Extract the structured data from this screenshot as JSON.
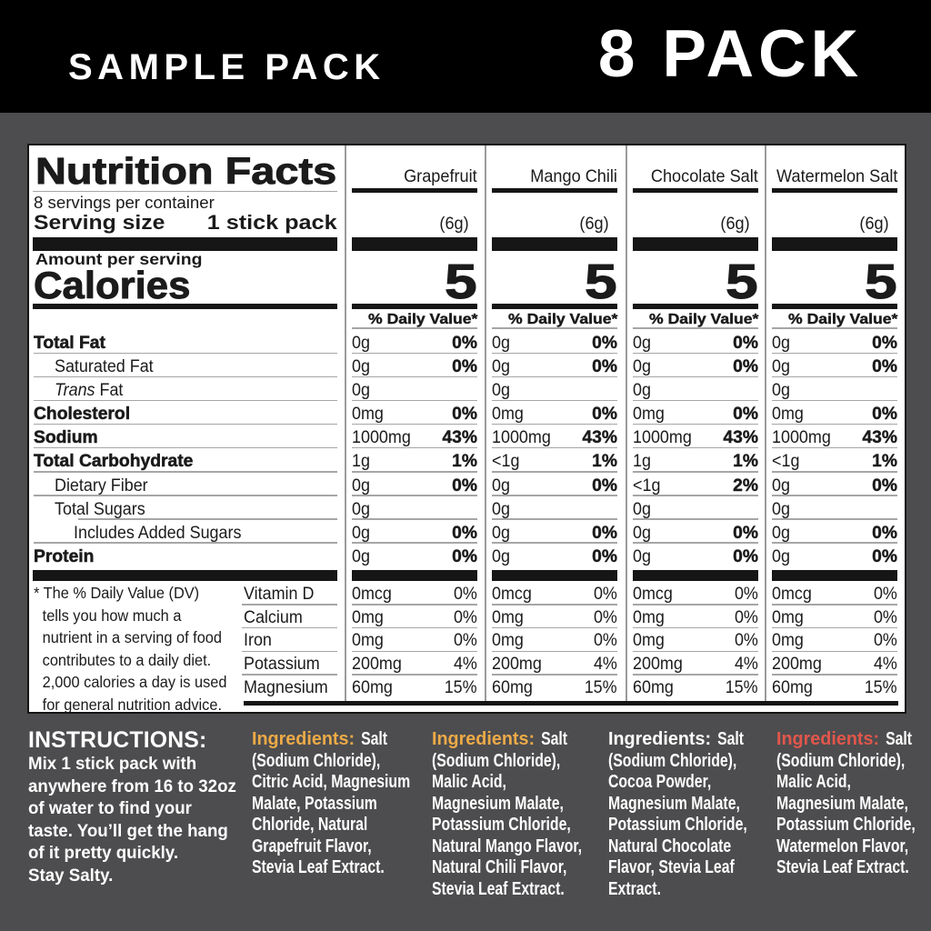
{
  "header": {
    "left_title": "SAMPLE PACK",
    "right_title": "8 PACK"
  },
  "panel": {
    "title": "Nutrition Facts",
    "servings_per_container": "8 servings per container",
    "serving_size_label": "Serving size",
    "serving_size_value": "1 stick pack",
    "amount_per_serving_label": "Amount per serving",
    "calories_label": "Calories",
    "daily_value_header": "% Daily Value*",
    "nutrient_labels": [
      {
        "text": "Total Fat",
        "bold": true,
        "indent": 0
      },
      {
        "text": "Saturated Fat",
        "bold": false,
        "indent": 1
      },
      {
        "text": "Trans Fat",
        "bold": false,
        "indent": 1,
        "italic_prefix": "Trans",
        "rest": " Fat"
      },
      {
        "text": "Cholesterol",
        "bold": true,
        "indent": 0
      },
      {
        "text": "Sodium",
        "bold": true,
        "indent": 0
      },
      {
        "text": "Total Carbohydrate",
        "bold": true,
        "indent": 0
      },
      {
        "text": "Dietary Fiber",
        "bold": false,
        "indent": 1
      },
      {
        "text": "Total Sugars",
        "bold": false,
        "indent": 1
      },
      {
        "text": "Includes Added Sugars",
        "bold": false,
        "indent": 2
      },
      {
        "text": "Protein",
        "bold": true,
        "indent": 0
      }
    ],
    "vitamin_labels": [
      "Vitamin D",
      "Calcium",
      "Iron",
      "Potassium",
      "Magnesium"
    ],
    "footnote_lines": [
      "* The % Daily Value (DV)",
      "tells you how much a",
      "nutrient in a serving of food",
      "contributes to a daily diet.",
      "2,000 calories a day is used",
      "for general nutrition advice."
    ],
    "flavors": [
      {
        "name": "Grapefruit",
        "serving_weight": "(6g)",
        "calories": "5",
        "rows": [
          [
            "0g",
            "0%"
          ],
          [
            "0g",
            "0%"
          ],
          [
            "0g",
            ""
          ],
          [
            "0mg",
            "0%"
          ],
          [
            "1000mg",
            "43%"
          ],
          [
            "1g",
            "1%"
          ],
          [
            "0g",
            "0%"
          ],
          [
            "0g",
            ""
          ],
          [
            "0g",
            "0%"
          ],
          [
            "0g",
            "0%"
          ]
        ],
        "vitamin_rows": [
          [
            "0mcg",
            "0%"
          ],
          [
            "0mg",
            "0%"
          ],
          [
            "0mg",
            "0%"
          ],
          [
            "200mg",
            "4%"
          ],
          [
            "60mg",
            "15%"
          ]
        ]
      },
      {
        "name": "Mango Chili",
        "serving_weight": "(6g)",
        "calories": "5",
        "rows": [
          [
            "0g",
            "0%"
          ],
          [
            "0g",
            "0%"
          ],
          [
            "0g",
            ""
          ],
          [
            "0mg",
            "0%"
          ],
          [
            "1000mg",
            "43%"
          ],
          [
            "<1g",
            "1%"
          ],
          [
            "0g",
            "0%"
          ],
          [
            "0g",
            ""
          ],
          [
            "0g",
            "0%"
          ],
          [
            "0g",
            "0%"
          ]
        ],
        "vitamin_rows": [
          [
            "0mcg",
            "0%"
          ],
          [
            "0mg",
            "0%"
          ],
          [
            "0mg",
            "0%"
          ],
          [
            "200mg",
            "4%"
          ],
          [
            "60mg",
            "15%"
          ]
        ]
      },
      {
        "name": "Chocolate Salt",
        "serving_weight": "(6g)",
        "calories": "5",
        "rows": [
          [
            "0g",
            "0%"
          ],
          [
            "0g",
            "0%"
          ],
          [
            "0g",
            ""
          ],
          [
            "0mg",
            "0%"
          ],
          [
            "1000mg",
            "43%"
          ],
          [
            "1g",
            "1%"
          ],
          [
            "<1g",
            "2%"
          ],
          [
            "0g",
            ""
          ],
          [
            "0g",
            "0%"
          ],
          [
            "0g",
            "0%"
          ]
        ],
        "vitamin_rows": [
          [
            "0mcg",
            "0%"
          ],
          [
            "0mg",
            "0%"
          ],
          [
            "0mg",
            "0%"
          ],
          [
            "200mg",
            "4%"
          ],
          [
            "60mg",
            "15%"
          ]
        ]
      },
      {
        "name": "Watermelon Salt",
        "serving_weight": "(6g)",
        "calories": "5",
        "rows": [
          [
            "0g",
            "0%"
          ],
          [
            "0g",
            "0%"
          ],
          [
            "0g",
            ""
          ],
          [
            "0mg",
            "0%"
          ],
          [
            "1000mg",
            "43%"
          ],
          [
            "<1g",
            "1%"
          ],
          [
            "0g",
            "0%"
          ],
          [
            "0g",
            ""
          ],
          [
            "0g",
            "0%"
          ],
          [
            "0g",
            "0%"
          ]
        ],
        "vitamin_rows": [
          [
            "0mcg",
            "0%"
          ],
          [
            "0mg",
            "0%"
          ],
          [
            "0mg",
            "0%"
          ],
          [
            "200mg",
            "4%"
          ],
          [
            "60mg",
            "15%"
          ]
        ]
      }
    ]
  },
  "footer": {
    "instructions_title": "INSTRUCTIONS:",
    "instructions_lines": [
      "Mix 1 stick pack with",
      "anywhere from 16 to 32oz",
      "of water to find your",
      "taste. You’ll get the hang",
      "of it pretty quickly.",
      "Stay Salty."
    ],
    "ingredients_label": "Ingredients:",
    "ingredients": [
      {
        "flavor": "Grapefruit",
        "label_color": "#ecaa47",
        "lines": [
          "Salt",
          "(Sodium Chloride),",
          "Citric Acid, Magnesium",
          "Malate, Potassium",
          "Chloride, Natural",
          "Grapefruit Flavor,",
          "Stevia Leaf Extract."
        ]
      },
      {
        "flavor": "Mango Chili",
        "label_color": "#ecaa47",
        "lines": [
          "Salt",
          "(Sodium Chloride),",
          "Malic Acid,",
          "Magnesium Malate,",
          "Potassium Chloride,",
          "Natural Mango Flavor,",
          "Natural Chili Flavor,",
          "Stevia Leaf Extract."
        ]
      },
      {
        "flavor": "Chocolate Salt",
        "label_color": "#ffffff",
        "lines": [
          "Salt",
          "(Sodium Chloride),",
          "Cocoa Powder,",
          "Magnesium Malate,",
          "Potassium Chloride,",
          "Natural Chocolate",
          "Flavor, Stevia Leaf",
          "Extract."
        ]
      },
      {
        "flavor": "Watermelon Salt",
        "label_color": "#e2564b",
        "lines": [
          "Salt",
          "(Sodium Chloride),",
          "Malic Acid,",
          "Magnesium Malate,",
          "Potassium Chloride,",
          "Watermelon Flavor,",
          "Stevia Leaf Extract."
        ]
      }
    ]
  },
  "colors": {
    "background": "#4d4d4f",
    "banner": "#000000",
    "panel_bg": "#ffffff",
    "text_dark": "#1b1b1b",
    "amber": "#ecaa47",
    "coral": "#e2564b",
    "white": "#ffffff"
  }
}
